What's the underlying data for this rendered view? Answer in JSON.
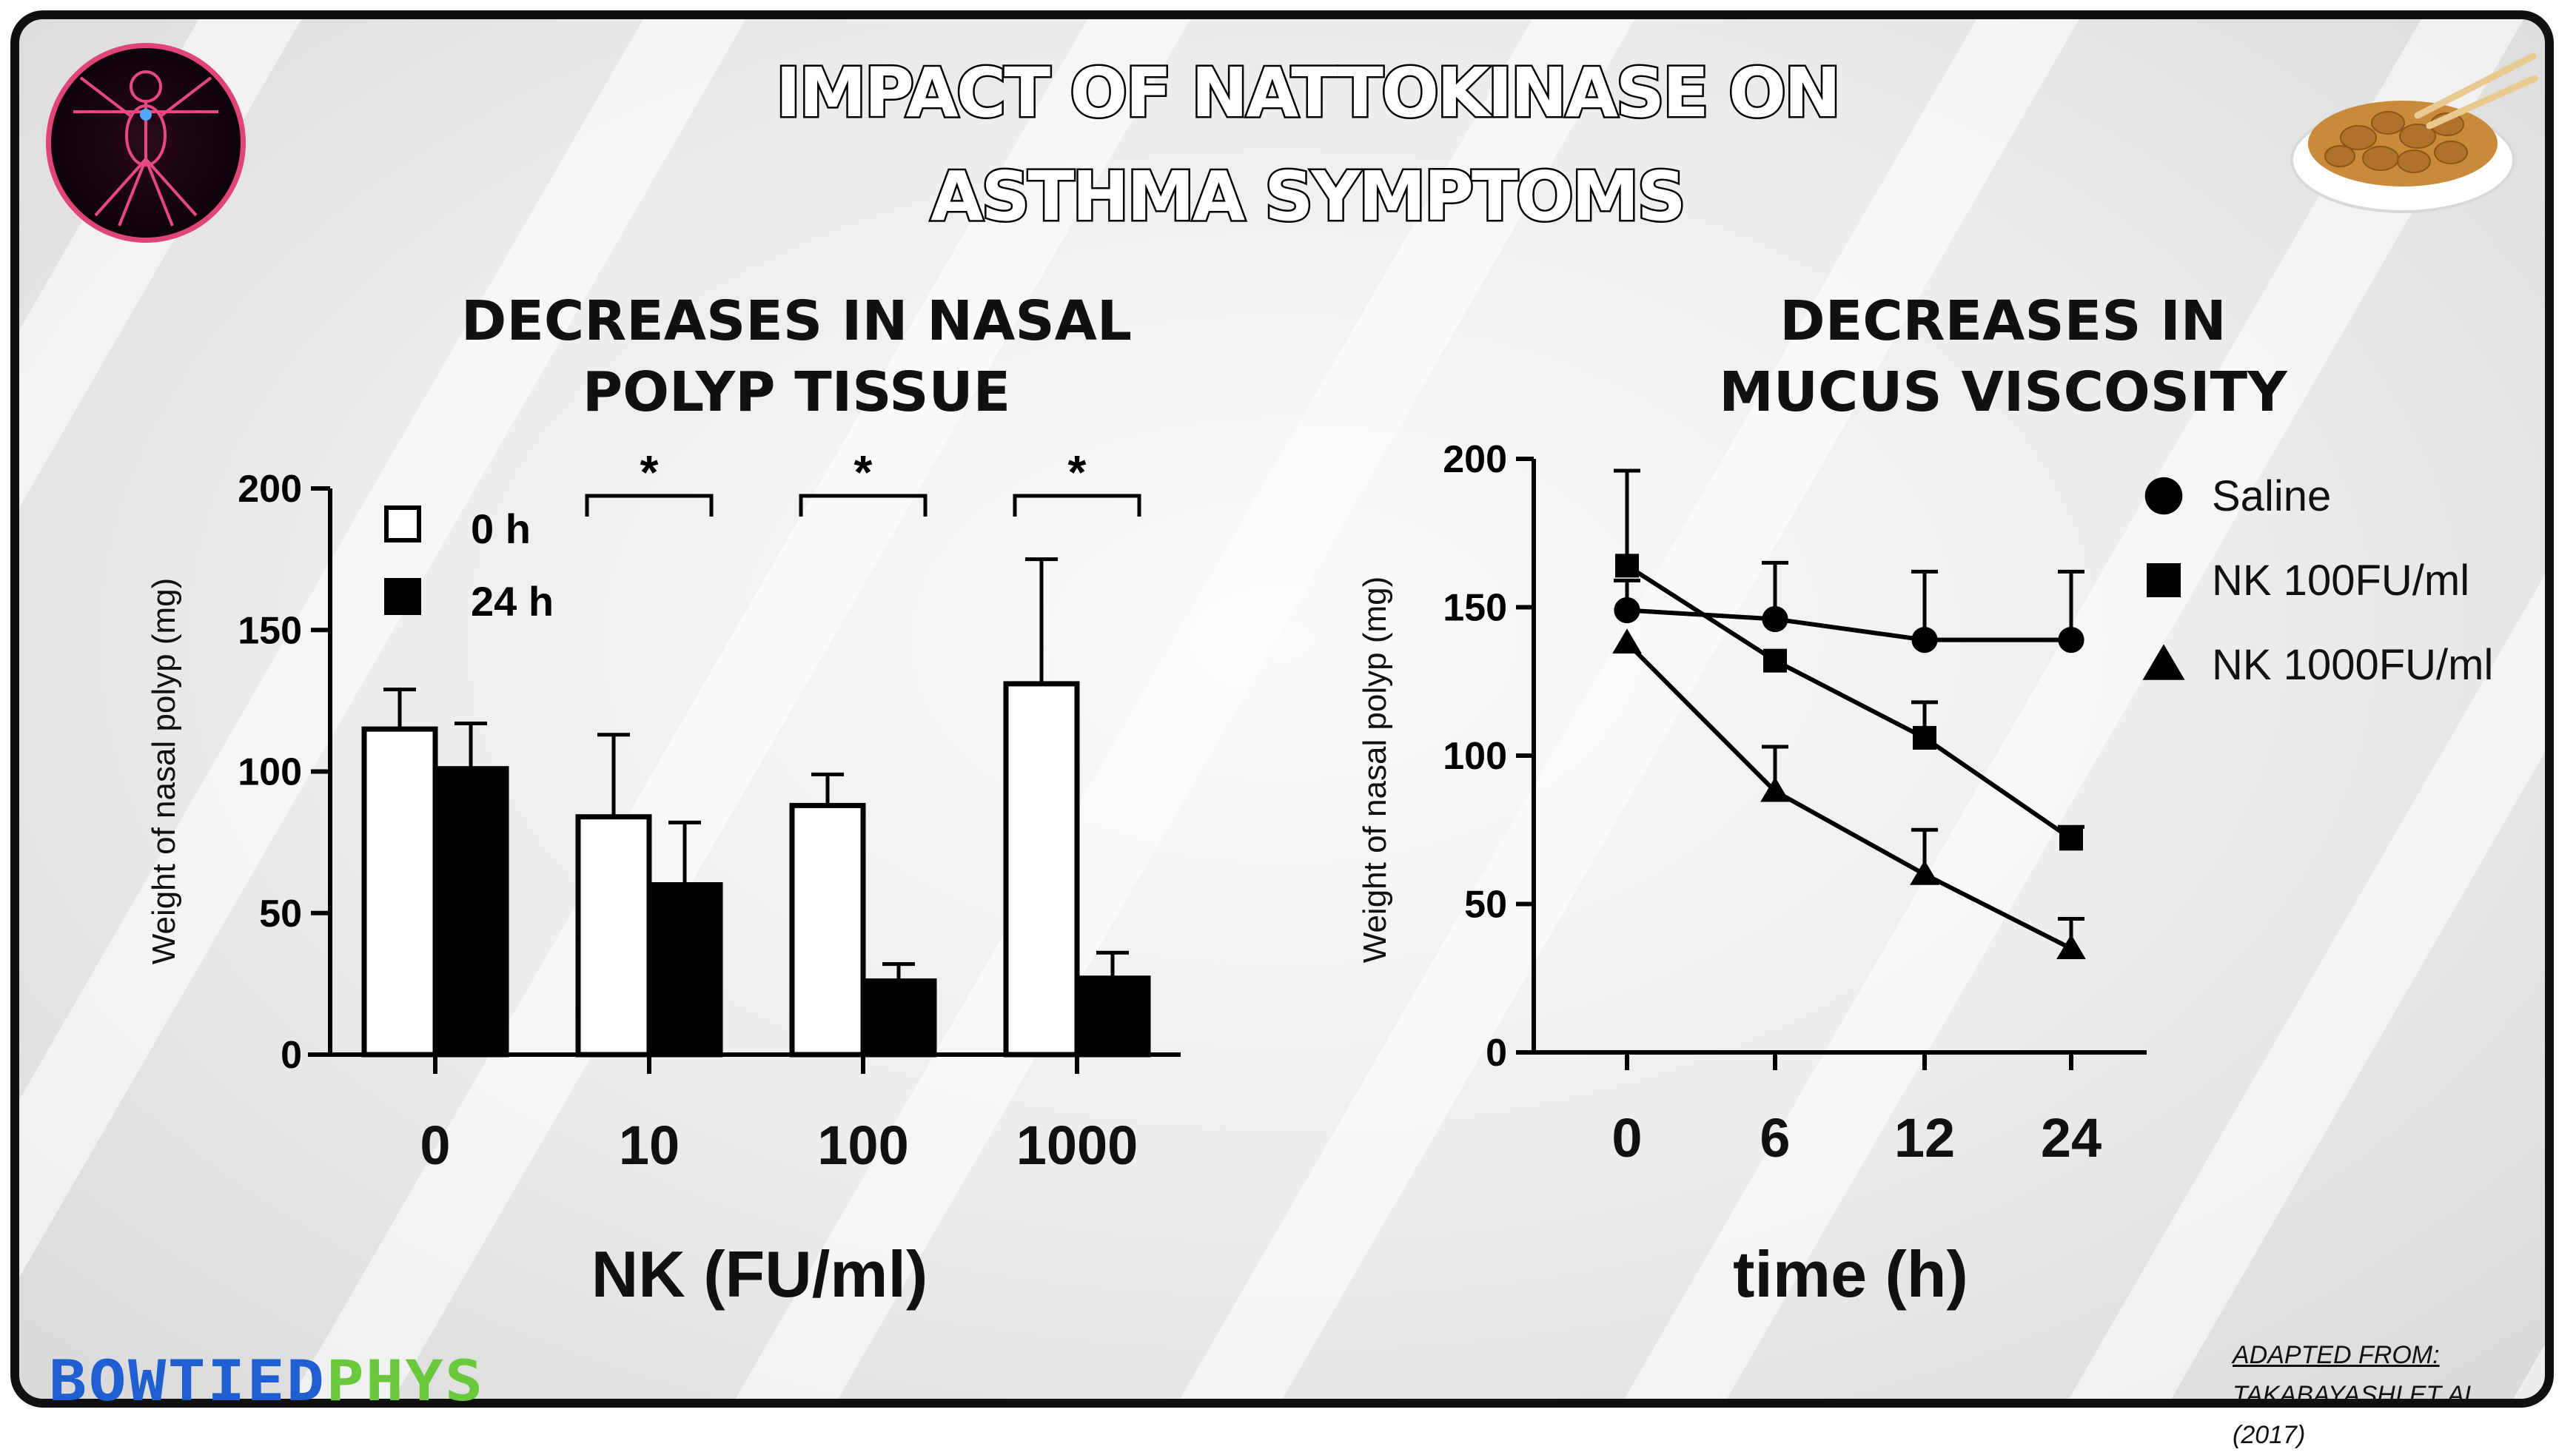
{
  "title_line1": "IMPACT OF NATTOKINASE ON",
  "title_line2": "ASTHMA SYMPTOMS",
  "brand": {
    "part1": "BOWTIED",
    "part2": "PHYS",
    "color1": "#1f5fcf",
    "color2": "#6ac83c"
  },
  "credit": {
    "label": "ADAPTED FROM:",
    "source": "TAKABAYASHI ET AL. (2017)"
  },
  "chart_data": [
    {
      "type": "bar",
      "title_line1": "DECREASES IN NASAL",
      "title_line2": "POLYP TISSUE",
      "categories": [
        "0",
        "10",
        "100",
        "1000"
      ],
      "xlabel": "NK (FU/ml)",
      "ylabel": "Weight of nasal polyp (mg)",
      "ylim": [
        0,
        200
      ],
      "yticks": [
        "0",
        "50",
        "100",
        "150",
        "200"
      ],
      "series": [
        {
          "name": "0 h",
          "fill": "#ffffff",
          "values": [
            115,
            84,
            88,
            131
          ],
          "errors": [
            14,
            29,
            11,
            44
          ]
        },
        {
          "name": "24 h",
          "fill": "#000000",
          "values": [
            101,
            60,
            26,
            27
          ],
          "errors": [
            16,
            22,
            6,
            9
          ]
        }
      ],
      "significance": [
        {
          "category": "10",
          "marker": "*"
        },
        {
          "category": "100",
          "marker": "*"
        },
        {
          "category": "1000",
          "marker": "*"
        }
      ],
      "legend_position": "top-left"
    },
    {
      "type": "line",
      "title_line1": "DECREASES IN",
      "title_line2": "MUCUS VISCOSITY",
      "categories": [
        "0",
        "6",
        "12",
        "24"
      ],
      "xlabel": "time (h)",
      "ylabel": "Weight of nasal polyp (mg)",
      "ylim": [
        0,
        200
      ],
      "yticks": [
        "0",
        "50",
        "100",
        "150",
        "200"
      ],
      "series": [
        {
          "name": "Saline",
          "marker": "circle",
          "values": [
            149,
            146,
            139,
            139
          ],
          "errors": [
            10,
            19,
            23,
            23
          ]
        },
        {
          "name": "NK 100FU/ml",
          "marker": "square",
          "values": [
            164,
            132,
            106,
            72
          ],
          "errors": [
            32,
            0,
            12,
            4
          ]
        },
        {
          "name": "NK 1000FU/ml",
          "marker": "triangle",
          "values": [
            138,
            88,
            60,
            35
          ],
          "errors": [
            0,
            15,
            15,
            10
          ]
        }
      ],
      "legend_position": "top-right"
    }
  ]
}
